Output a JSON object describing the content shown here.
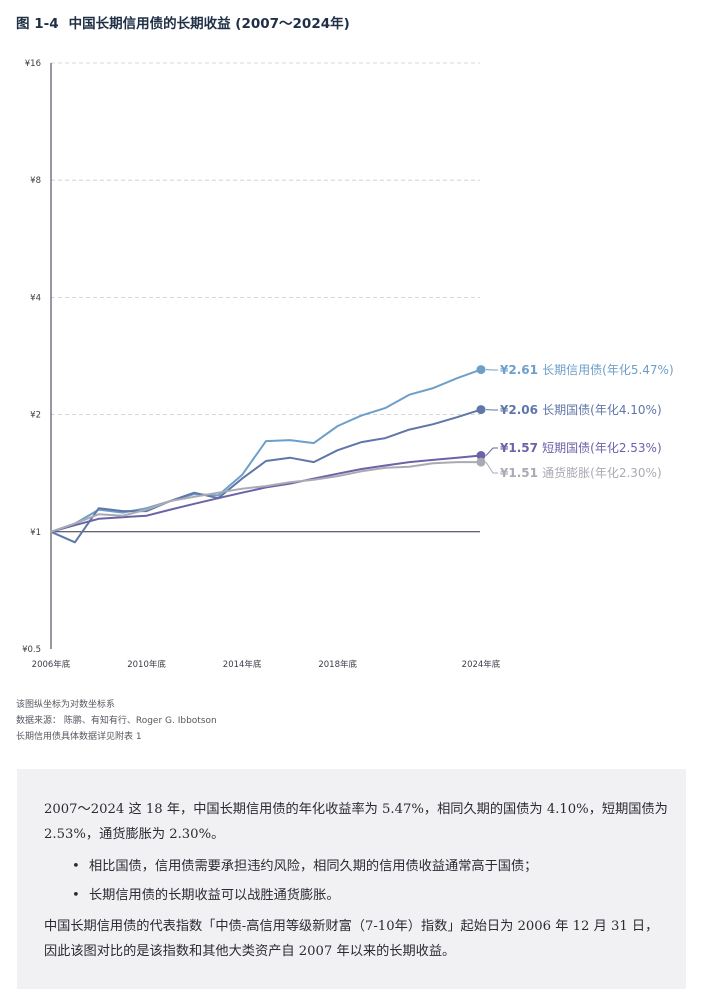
{
  "heading": {
    "figure_no": "图 1-4",
    "title": "中国长期信用债的长期收益 (2007～2024年)"
  },
  "chart_data": {
    "type": "line",
    "title": "中国长期信用债的长期收益 (2007～2024年)",
    "y_scale": "log2",
    "ylim": [
      0.5,
      16
    ],
    "y_ticks": [
      {
        "value": 0.5,
        "label": "¥0.5"
      },
      {
        "value": 1,
        "label": "¥1"
      },
      {
        "value": 2,
        "label": "¥2"
      },
      {
        "value": 4,
        "label": "¥4"
      },
      {
        "value": 8,
        "label": "¥8"
      },
      {
        "value": 16,
        "label": "¥16"
      }
    ],
    "x_ticks": [
      {
        "value": 2006,
        "label": "2006年底"
      },
      {
        "value": 2010,
        "label": "2010年底"
      },
      {
        "value": 2014,
        "label": "2014年底"
      },
      {
        "value": 2018,
        "label": "2018年底"
      },
      {
        "value": 2024,
        "label": "2024年底"
      }
    ],
    "xlim": [
      2006,
      2024
    ],
    "grid": "horizontal dashed",
    "series": [
      {
        "name": "长期信用债",
        "color": "#6e9fc9",
        "end_label_value": "¥2.61",
        "end_label_name": "长期信用债(年化5.47%)",
        "x": [
          2006,
          2007,
          2008,
          2009,
          2010,
          2011,
          2012,
          2013,
          2014,
          2015,
          2016,
          2017,
          2018,
          2019,
          2020,
          2021,
          2022,
          2023,
          2024
        ],
        "y": [
          1.0,
          1.05,
          1.14,
          1.12,
          1.15,
          1.2,
          1.25,
          1.24,
          1.4,
          1.71,
          1.72,
          1.69,
          1.87,
          1.99,
          2.08,
          2.25,
          2.34,
          2.48,
          2.61
        ]
      },
      {
        "name": "长期国债",
        "color": "#5f77a8",
        "end_label_value": "¥2.06",
        "end_label_name": "长期国债(年化4.10%)",
        "x": [
          2006,
          2007,
          2008,
          2009,
          2010,
          2011,
          2012,
          2013,
          2014,
          2015,
          2016,
          2017,
          2018,
          2019,
          2020,
          2021,
          2022,
          2023,
          2024
        ],
        "y": [
          1.0,
          0.94,
          1.15,
          1.13,
          1.13,
          1.2,
          1.26,
          1.22,
          1.37,
          1.52,
          1.55,
          1.51,
          1.62,
          1.7,
          1.74,
          1.83,
          1.89,
          1.97,
          2.06
        ]
      },
      {
        "name": "短期国债",
        "color": "#6a63a6",
        "end_label_value": "¥1.57",
        "end_label_name": "短期国债(年化2.53%)",
        "x": [
          2006,
          2007,
          2008,
          2009,
          2010,
          2011,
          2012,
          2013,
          2014,
          2015,
          2016,
          2017,
          2018,
          2019,
          2020,
          2021,
          2022,
          2023,
          2024
        ],
        "y": [
          1.0,
          1.04,
          1.08,
          1.09,
          1.1,
          1.14,
          1.18,
          1.22,
          1.26,
          1.3,
          1.33,
          1.37,
          1.41,
          1.45,
          1.48,
          1.51,
          1.53,
          1.55,
          1.57
        ]
      },
      {
        "name": "通货膨胀",
        "color": "#a9aab4",
        "end_label_value": "¥1.51",
        "end_label_name": "通货膨胀(年化2.30%)",
        "x": [
          2006,
          2007,
          2008,
          2009,
          2010,
          2011,
          2012,
          2013,
          2014,
          2015,
          2016,
          2017,
          2018,
          2019,
          2020,
          2021,
          2022,
          2023,
          2024
        ],
        "y": [
          1.0,
          1.05,
          1.11,
          1.1,
          1.14,
          1.2,
          1.23,
          1.26,
          1.29,
          1.31,
          1.34,
          1.36,
          1.39,
          1.43,
          1.46,
          1.47,
          1.5,
          1.51,
          1.51
        ]
      }
    ]
  },
  "notes": [
    "该图纵坐标为对数坐标系",
    "数据来源：  陈鹏、有知有行、Roger G. Ibbotson",
    "长期信用债具体数据详见附表 1"
  ],
  "callout": {
    "summary": "2007～2024 这 18 年，中国长期信用债的年化收益率为 5.47%，相同久期的国债为 4.10%，短期国债为 2.53%，通货膨胀为 2.30%。",
    "bullets": [
      "相比国债，信用债需要承担违约风险，相同久期的信用债收益通常高于国债；",
      "长期信用债的长期收益可以战胜通货膨胀。"
    ],
    "index_note": "中国长期信用债的代表指数「中债-高信用等级新财富（7-10年）指数」起始日为 2006 年 12 月 31 日，因此该图对比的是该指数和其他大类资产自 2007 年以来的长期收益。"
  }
}
